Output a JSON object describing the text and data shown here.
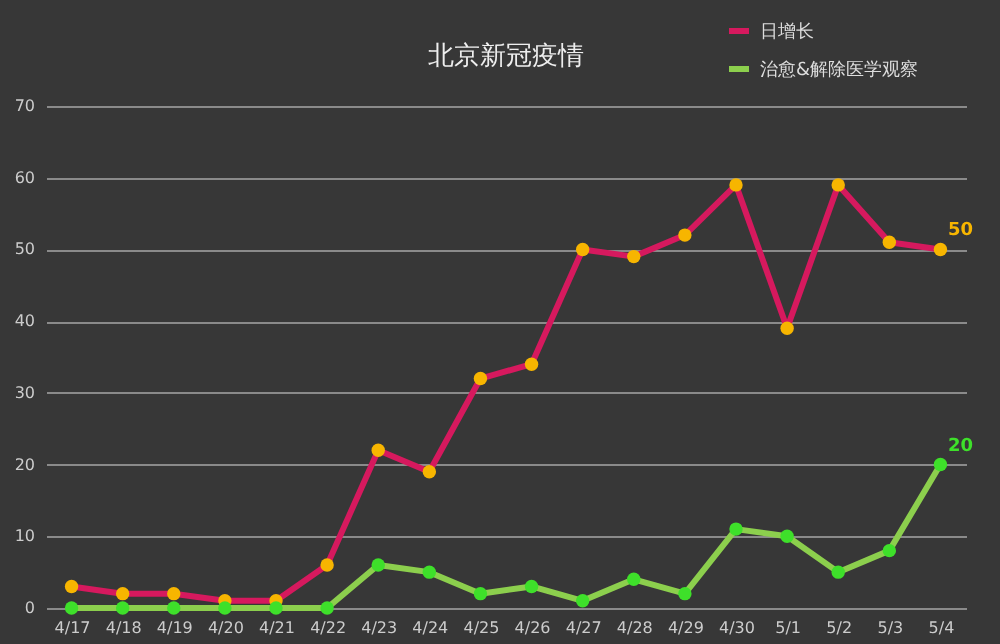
{
  "chart_data": {
    "type": "line",
    "title": "北京新冠疫情",
    "categories": [
      "4/17",
      "4/18",
      "4/19",
      "4/20",
      "4/21",
      "4/22",
      "4/23",
      "4/24",
      "4/25",
      "4/26",
      "4/27",
      "4/28",
      "4/29",
      "4/30",
      "5/1",
      "5/2",
      "5/3",
      "5/4"
    ],
    "series": [
      {
        "name": "日增长",
        "color": "#d6195e",
        "values": [
          3,
          2,
          2,
          1,
          1,
          6,
          22,
          19,
          32,
          34,
          50,
          49,
          52,
          59,
          39,
          59,
          51,
          50
        ],
        "value_labels": [
          null,
          null,
          null,
          null,
          null,
          null,
          null,
          null,
          null,
          null,
          null,
          null,
          null,
          null,
          null,
          null,
          null,
          "50"
        ]
      },
      {
        "name": "治愈&解除医学观察",
        "color": "#8ccf4d",
        "values": [
          0,
          0,
          0,
          0,
          0,
          0,
          6,
          5,
          2,
          3,
          1,
          4,
          2,
          11,
          10,
          5,
          8,
          20
        ],
        "value_labels": [
          null,
          null,
          null,
          null,
          null,
          null,
          null,
          null,
          null,
          null,
          null,
          null,
          null,
          null,
          null,
          null,
          null,
          "20"
        ]
      }
    ],
    "ylim": [
      0,
      70
    ],
    "yticks": [
      0,
      10,
      20,
      30,
      40,
      50,
      60,
      70
    ],
    "grid": "y",
    "legend": "top right",
    "marker": "circle",
    "line_style": "solid"
  }
}
